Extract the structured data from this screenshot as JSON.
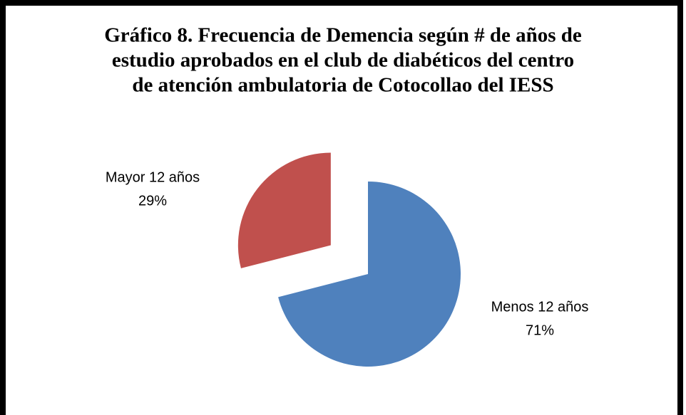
{
  "chart_data": {
    "type": "pie",
    "title": [
      "Gráfico 8. Frecuencia de Demencia según # de años de",
      "estudio aprobados en el club de diabéticos del  centro",
      "de atención ambulatoria de Cotocollao  del IESS"
    ],
    "categories": [
      "Menos 12 años",
      "Mayor 12 años"
    ],
    "values": [
      71,
      29
    ],
    "value_labels": [
      "71%",
      "29%"
    ],
    "colors": [
      "#4f81bd",
      "#c0504d"
    ]
  }
}
